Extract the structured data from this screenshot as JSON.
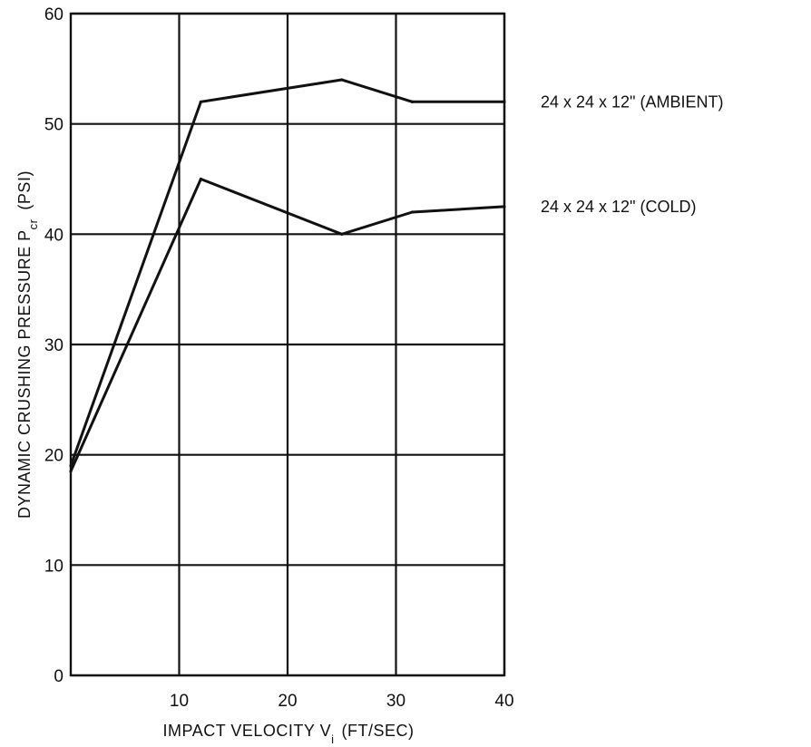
{
  "chart_data": {
    "type": "line",
    "xlabel": "IMPACT VELOCITY V",
    "xlabel_sub": "i",
    "xlabel_units": "(FT/SEC)",
    "ylabel": "DYNAMIC CRUSHING PRESSURE P",
    "ylabel_sub": "cr",
    "ylabel_units": "(PSI)",
    "xlim": [
      0,
      40
    ],
    "ylim": [
      0,
      60
    ],
    "x_ticks": [
      "10",
      "20",
      "30",
      "40"
    ],
    "y_ticks": [
      "0",
      "10",
      "20",
      "30",
      "40",
      "50",
      "60"
    ],
    "grid": true,
    "legend_placement": "right of plot, labels at line ends",
    "series": [
      {
        "name": "24 x 24 x 12\" (AMBIENT)",
        "x": [
          0,
          12,
          25,
          31.5,
          40
        ],
        "y": [
          19,
          52,
          54,
          52,
          52
        ]
      },
      {
        "name": "24 x 24 x 12\" (COLD)",
        "x": [
          0,
          12,
          25,
          31.5,
          40
        ],
        "y": [
          18.5,
          45,
          40,
          42,
          42.5
        ]
      }
    ]
  }
}
